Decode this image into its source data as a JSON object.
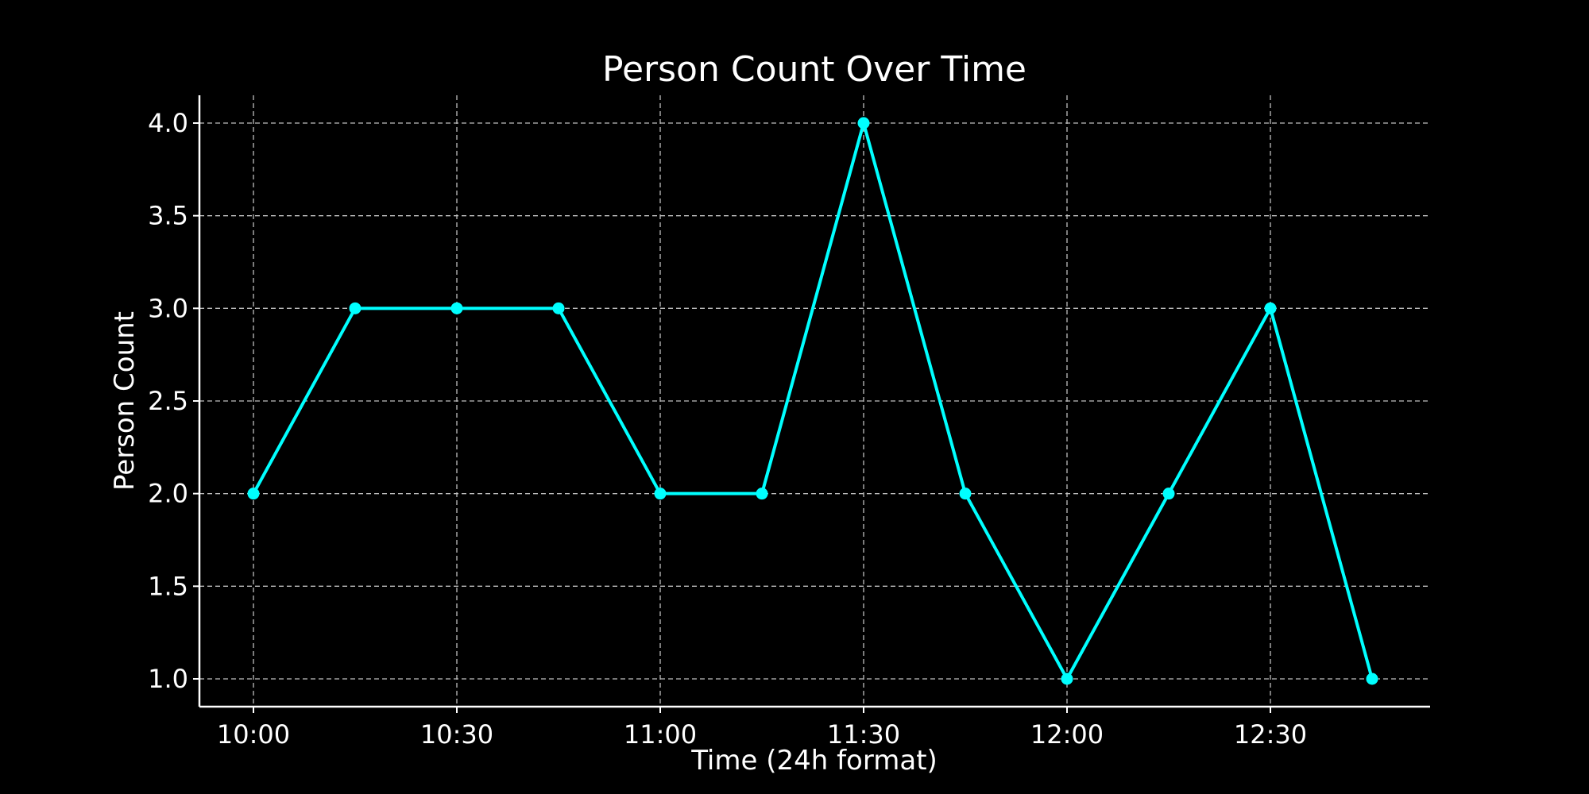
{
  "chart_data": {
    "type": "line",
    "title": "Person Count Over Time",
    "xlabel": "Time (24h format)",
    "ylabel": "Person Count",
    "x": [
      "10:00",
      "10:15",
      "10:30",
      "10:45",
      "11:00",
      "11:15",
      "11:30",
      "11:45",
      "12:00",
      "12:15",
      "12:30",
      "12:45"
    ],
    "series": [
      {
        "values": [
          2,
          3,
          3,
          3,
          2,
          2,
          4,
          2,
          1,
          2,
          3,
          1
        ],
        "color": "#00ffff"
      }
    ],
    "x_ticks": [
      "10:00",
      "10:30",
      "11:00",
      "11:30",
      "12:00",
      "12:30"
    ],
    "y_ticks": [
      "1.0",
      "1.5",
      "2.0",
      "2.5",
      "3.0",
      "3.5",
      "4.0"
    ],
    "ylim": [
      0.85,
      4.15
    ],
    "grid": true,
    "marker": "circle",
    "colors": {
      "background": "#000000",
      "foreground": "#ffffff",
      "grid": "#bfbfbf"
    }
  }
}
